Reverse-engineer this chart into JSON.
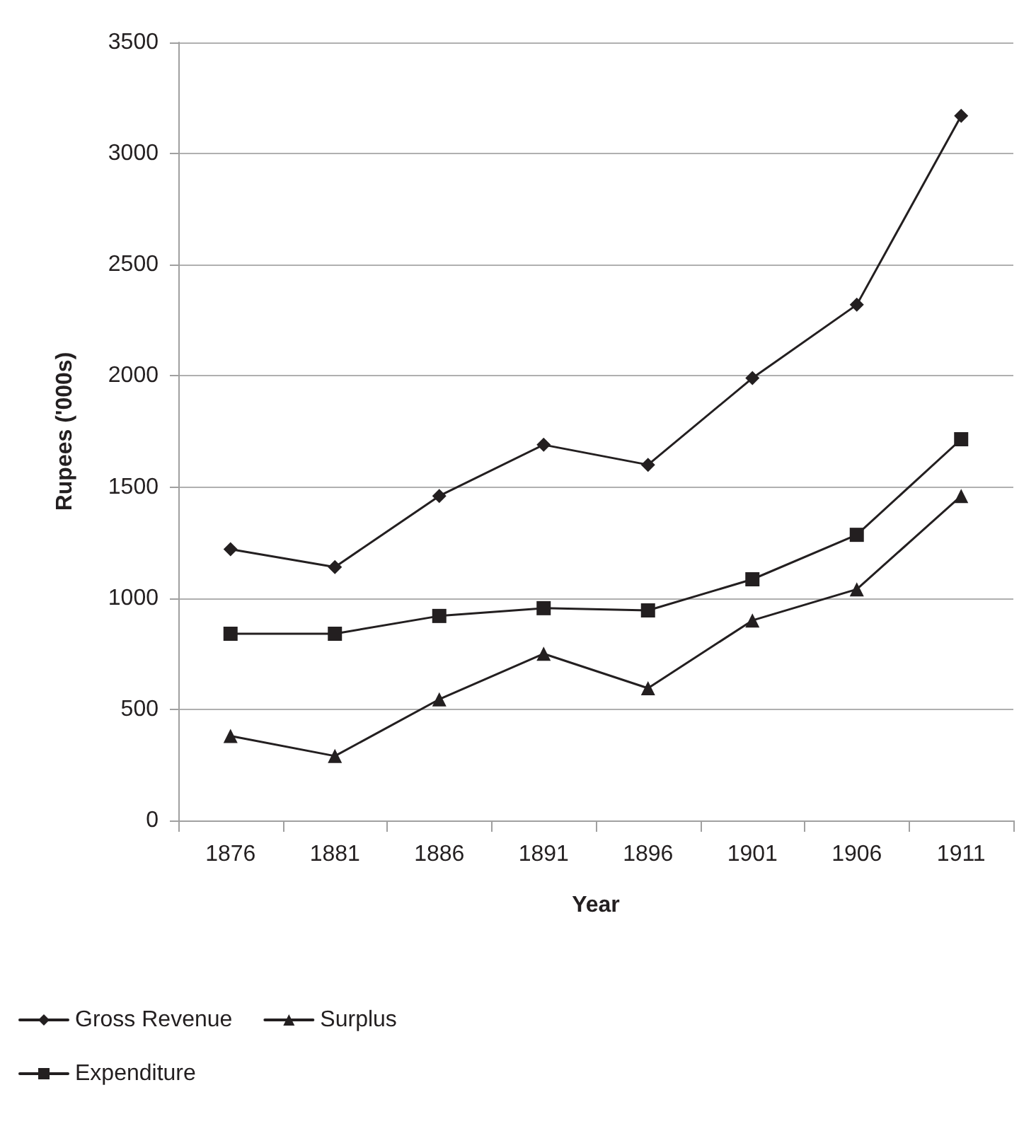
{
  "chart_data": {
    "type": "line",
    "xlabel": "Year",
    "ylabel": "Rupees ('000s)",
    "categories": [
      "1876",
      "1881",
      "1886",
      "1891",
      "1896",
      "1901",
      "1906",
      "1911"
    ],
    "series": [
      {
        "name": "Gross Revenue",
        "color": "#231f20",
        "marker": "diamond",
        "values": [
          1220,
          1140,
          1460,
          1690,
          1600,
          1990,
          2320,
          3170
        ]
      },
      {
        "name": "Expenditure",
        "color": "#231f20",
        "marker": "square",
        "values": [
          840,
          840,
          920,
          955,
          945,
          1085,
          1285,
          1715
        ]
      },
      {
        "name": "Surplus",
        "color": "#231f20",
        "marker": "triangle",
        "values": [
          380,
          290,
          545,
          750,
          595,
          900,
          1040,
          1460
        ]
      }
    ],
    "ylim": [
      0,
      3500
    ],
    "yticks": [
      0,
      500,
      1000,
      1500,
      2000,
      2500,
      3000,
      3500
    ],
    "grid": "y",
    "legend": "bottom",
    "line_style": "solid"
  }
}
